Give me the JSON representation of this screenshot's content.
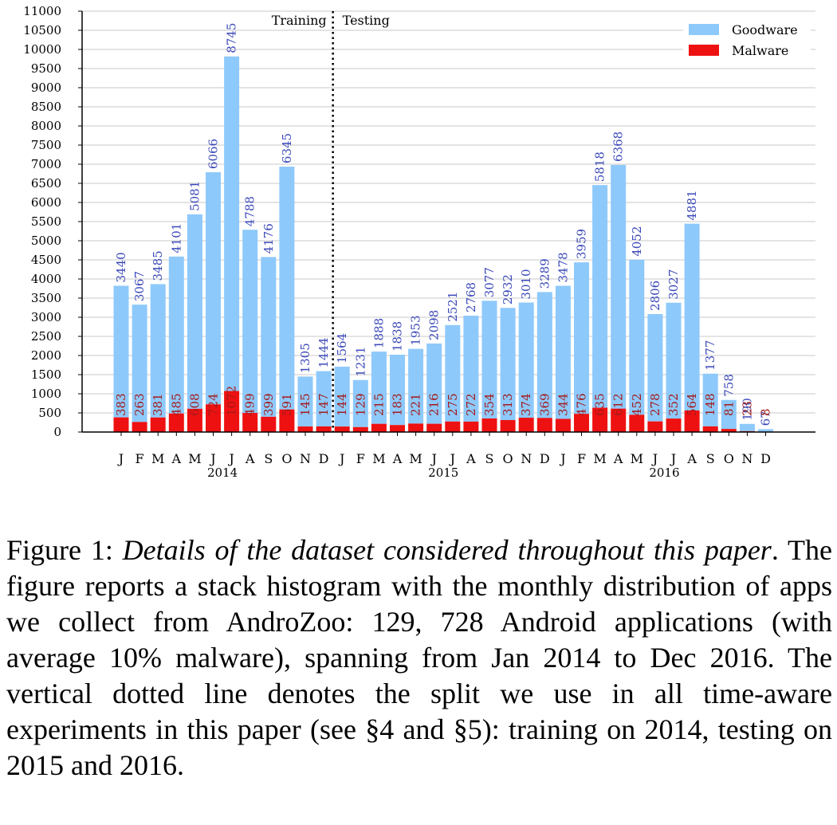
{
  "chart_data": {
    "type": "bar",
    "stacked": true,
    "categories": [
      "J",
      "F",
      "M",
      "A",
      "M",
      "J",
      "J",
      "A",
      "S",
      "O",
      "N",
      "D",
      "J",
      "F",
      "M",
      "A",
      "M",
      "J",
      "J",
      "A",
      "S",
      "O",
      "N",
      "D",
      "J",
      "F",
      "M",
      "A",
      "M",
      "J",
      "J",
      "A",
      "S",
      "O",
      "N",
      "D"
    ],
    "year_labels": [
      "2014",
      "2015",
      "2016"
    ],
    "series": [
      {
        "name": "Goodware",
        "color": "#8ec9fb",
        "label_color": "#3a48b8",
        "values": [
          3440,
          3067,
          3485,
          4101,
          5081,
          6066,
          8745,
          4788,
          4176,
          6345,
          1305,
          1444,
          1564,
          1231,
          1888,
          1838,
          1953,
          2098,
          2521,
          2768,
          3077,
          2932,
          3010,
          3289,
          3478,
          3959,
          5818,
          6368,
          4052,
          2806,
          3027,
          4881,
          1377,
          758,
          190,
          67
        ]
      },
      {
        "name": "Malware",
        "color": "#ee1111",
        "label_color": "#a31a1a",
        "values": [
          383,
          263,
          381,
          485,
          608,
          724,
          1072,
          499,
          399,
          591,
          145,
          147,
          144,
          129,
          215,
          183,
          221,
          216,
          275,
          272,
          354,
          313,
          374,
          369,
          344,
          476,
          635,
          612,
          452,
          278,
          352,
          564,
          148,
          81,
          23,
          8
        ]
      }
    ],
    "ylim": [
      0,
      11000
    ],
    "yticks": [
      "0",
      "500",
      "1000",
      "1500",
      "2000",
      "2500",
      "3000",
      "3500",
      "4000",
      "4500",
      "5000",
      "5500",
      "6000",
      "6500",
      "7000",
      "7500",
      "8000",
      "8500",
      "9000",
      "9500",
      "10000",
      "10500",
      "11000"
    ],
    "grid": true,
    "legend_position": "top-right",
    "split_marker": {
      "after_index": 11,
      "style": "dotted",
      "left_label": "Training",
      "right_label": "Testing"
    },
    "xlabel": "",
    "ylabel": ""
  },
  "caption": {
    "label": "Figure 1: ",
    "title": "Details of the dataset considered throughout this paper",
    "body": ". The figure reports a stack histogram with the monthly distribution of apps we collect from AndroZoo: 129, 728 Android applications (with average 10% malware), spanning from Jan 2014 to Dec 2016. The vertical dotted line denotes the split we use in all time-aware experiments in this paper (see §4 and §5): training on 2014, testing on 2015 and 2016."
  }
}
